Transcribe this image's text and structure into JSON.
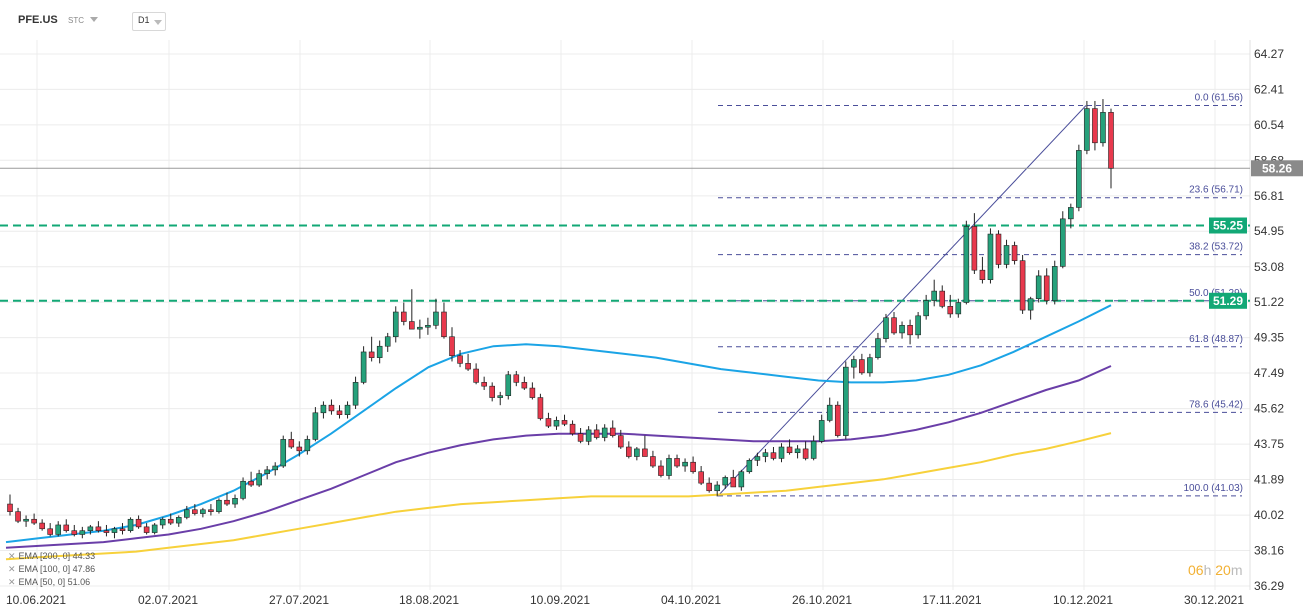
{
  "header": {
    "symbol": "PFE.US",
    "exchange": "STC",
    "timeframe": "D1"
  },
  "timer": {
    "hours": "06",
    "h_unit": "h",
    "minutes": "20",
    "m_unit": "m"
  },
  "legend": [
    {
      "label": "EMA [200, 0]",
      "value": "44.33"
    },
    {
      "label": "EMA [100, 0]",
      "value": "47.86"
    },
    {
      "label": "EMA [50, 0]",
      "value": "51.06"
    }
  ],
  "colors": {
    "up": "#26a17b",
    "down": "#e8394d",
    "ema200": "#f7d13b",
    "ema100": "#6a3ea8",
    "ema50": "#1ba4e6",
    "fib": "#4a4e9a",
    "level": "#12a876"
  },
  "chart_data": {
    "type": "candlestick",
    "y_ticks": [
      64.27,
      62.41,
      60.54,
      58.68,
      56.81,
      54.95,
      53.08,
      51.22,
      49.35,
      47.49,
      45.62,
      43.75,
      41.89,
      40.02,
      38.16,
      36.29
    ],
    "ylim": [
      36.29,
      64.27
    ],
    "x_labels": [
      "10.06.2021",
      "02.07.2021",
      "27.07.2021",
      "18.08.2021",
      "10.09.2021",
      "04.10.2021",
      "26.10.2021",
      "17.11.2021",
      "10.12.2021",
      "30.12.2021"
    ],
    "current_price": "58.26",
    "horizontal_levels": [
      {
        "price": 55.25,
        "label": "55.25"
      },
      {
        "price": 51.29,
        "label": "51.29"
      }
    ],
    "fibonacci": {
      "low": 41.03,
      "high": 61.56,
      "levels": [
        {
          "label": "0.0 (61.56)",
          "price": 61.56
        },
        {
          "label": "23.6 (56.71)",
          "price": 56.71
        },
        {
          "label": "38.2 (53.72)",
          "price": 53.72
        },
        {
          "label": "50.0 (51.29)",
          "price": 51.29
        },
        {
          "label": "61.8 (48.87)",
          "price": 48.87
        },
        {
          "label": "78.6 (45.42)",
          "price": 45.42
        },
        {
          "label": "100.0 (41.03)",
          "price": 41.03
        }
      ]
    },
    "ohlc": [
      [
        40.6,
        41.1,
        40.0,
        40.2
      ],
      [
        40.2,
        40.4,
        39.6,
        39.7
      ],
      [
        39.7,
        40.0,
        39.4,
        39.8
      ],
      [
        39.8,
        40.1,
        39.5,
        39.6
      ],
      [
        39.6,
        39.8,
        39.2,
        39.3
      ],
      [
        39.3,
        39.6,
        38.9,
        39.0
      ],
      [
        39.0,
        39.7,
        38.9,
        39.5
      ],
      [
        39.5,
        39.8,
        39.1,
        39.2
      ],
      [
        39.2,
        39.5,
        38.9,
        39.0
      ],
      [
        39.0,
        39.4,
        38.8,
        39.2
      ],
      [
        39.2,
        39.5,
        39.0,
        39.4
      ],
      [
        39.4,
        39.7,
        39.1,
        39.2
      ],
      [
        39.2,
        39.5,
        38.9,
        39.1
      ],
      [
        39.1,
        39.4,
        38.8,
        39.3
      ],
      [
        39.3,
        39.6,
        39.0,
        39.2
      ],
      [
        39.2,
        39.9,
        39.1,
        39.8
      ],
      [
        39.8,
        40.0,
        39.3,
        39.4
      ],
      [
        39.4,
        39.6,
        39.0,
        39.1
      ],
      [
        39.1,
        39.6,
        39.0,
        39.5
      ],
      [
        39.5,
        39.9,
        39.3,
        39.8
      ],
      [
        39.8,
        40.1,
        39.5,
        39.6
      ],
      [
        39.6,
        40.0,
        39.4,
        39.9
      ],
      [
        39.9,
        40.5,
        39.8,
        40.3
      ],
      [
        40.3,
        40.6,
        40.0,
        40.1
      ],
      [
        40.1,
        40.4,
        39.9,
        40.3
      ],
      [
        40.3,
        40.6,
        40.0,
        40.2
      ],
      [
        40.2,
        40.9,
        40.1,
        40.8
      ],
      [
        40.8,
        41.2,
        40.5,
        40.6
      ],
      [
        40.6,
        41.1,
        40.4,
        40.9
      ],
      [
        40.9,
        42.0,
        40.8,
        41.8
      ],
      [
        41.8,
        42.3,
        41.5,
        41.6
      ],
      [
        41.6,
        42.4,
        41.5,
        42.2
      ],
      [
        42.2,
        42.6,
        41.9,
        42.4
      ],
      [
        42.4,
        42.8,
        42.1,
        42.6
      ],
      [
        42.6,
        44.2,
        42.5,
        44.0
      ],
      [
        44.0,
        44.4,
        43.5,
        43.6
      ],
      [
        43.6,
        43.9,
        43.1,
        43.4
      ],
      [
        43.4,
        44.2,
        43.2,
        44.0
      ],
      [
        44.0,
        45.7,
        43.9,
        45.4
      ],
      [
        45.4,
        46.0,
        45.1,
        45.8
      ],
      [
        45.8,
        46.1,
        45.3,
        45.5
      ],
      [
        45.5,
        45.8,
        45.1,
        45.3
      ],
      [
        45.3,
        46.0,
        45.1,
        45.8
      ],
      [
        45.8,
        47.3,
        45.6,
        47.0
      ],
      [
        47.0,
        48.9,
        46.9,
        48.6
      ],
      [
        48.6,
        49.4,
        48.1,
        48.3
      ],
      [
        48.3,
        49.2,
        48.0,
        48.9
      ],
      [
        48.9,
        49.6,
        48.6,
        49.4
      ],
      [
        49.4,
        51.0,
        49.1,
        50.7
      ],
      [
        50.7,
        51.2,
        50.0,
        50.2
      ],
      [
        50.2,
        51.9,
        49.9,
        49.8
      ],
      [
        49.8,
        50.3,
        49.3,
        49.9
      ],
      [
        49.9,
        50.4,
        49.5,
        50.0
      ],
      [
        50.0,
        51.4,
        49.8,
        50.7
      ],
      [
        50.7,
        51.2,
        49.3,
        49.4
      ],
      [
        49.4,
        49.9,
        48.1,
        48.4
      ],
      [
        48.4,
        48.7,
        47.8,
        48.0
      ],
      [
        48.0,
        48.5,
        47.6,
        47.7
      ],
      [
        47.7,
        48.0,
        46.9,
        47.0
      ],
      [
        47.0,
        47.3,
        46.6,
        46.8
      ],
      [
        46.8,
        47.0,
        46.0,
        46.2
      ],
      [
        46.2,
        46.5,
        45.8,
        46.3
      ],
      [
        46.3,
        47.6,
        46.1,
        47.4
      ],
      [
        47.4,
        47.6,
        46.8,
        47.0
      ],
      [
        47.0,
        47.3,
        46.6,
        46.7
      ],
      [
        46.7,
        47.0,
        46.1,
        46.2
      ],
      [
        46.2,
        46.4,
        45.0,
        45.1
      ],
      [
        45.1,
        45.4,
        44.6,
        44.7
      ],
      [
        44.7,
        45.2,
        44.5,
        45.0
      ],
      [
        45.0,
        45.3,
        44.7,
        44.8
      ],
      [
        44.8,
        45.0,
        44.2,
        44.3
      ],
      [
        44.3,
        44.6,
        43.8,
        43.9
      ],
      [
        43.9,
        44.7,
        43.7,
        44.5
      ],
      [
        44.5,
        44.8,
        44.0,
        44.1
      ],
      [
        44.1,
        44.8,
        43.9,
        44.6
      ],
      [
        44.6,
        45.0,
        44.1,
        44.2
      ],
      [
        44.2,
        44.5,
        43.5,
        43.6
      ],
      [
        43.6,
        43.9,
        43.0,
        43.1
      ],
      [
        43.1,
        43.6,
        42.9,
        43.5
      ],
      [
        43.5,
        44.2,
        43.3,
        43.1
      ],
      [
        43.1,
        43.4,
        42.5,
        42.6
      ],
      [
        42.6,
        42.9,
        42.0,
        42.1
      ],
      [
        42.1,
        43.2,
        41.9,
        43.0
      ],
      [
        43.0,
        43.2,
        42.5,
        42.6
      ],
      [
        42.6,
        43.0,
        42.3,
        42.8
      ],
      [
        42.8,
        43.1,
        42.2,
        42.3
      ],
      [
        42.3,
        42.6,
        41.6,
        41.7
      ],
      [
        41.7,
        42.0,
        41.2,
        41.3
      ],
      [
        41.3,
        41.8,
        41.0,
        41.6
      ],
      [
        41.6,
        42.1,
        41.4,
        42.0
      ],
      [
        42.0,
        42.4,
        41.6,
        41.5
      ],
      [
        41.5,
        42.4,
        41.3,
        42.3
      ],
      [
        42.3,
        43.0,
        42.2,
        42.9
      ],
      [
        42.9,
        43.3,
        42.6,
        43.1
      ],
      [
        43.1,
        43.5,
        42.8,
        43.3
      ],
      [
        43.3,
        43.6,
        42.9,
        43.0
      ],
      [
        43.0,
        43.8,
        42.8,
        43.6
      ],
      [
        43.6,
        44.0,
        43.2,
        43.3
      ],
      [
        43.3,
        43.7,
        43.0,
        43.5
      ],
      [
        43.5,
        43.9,
        42.9,
        43.0
      ],
      [
        43.0,
        44.2,
        42.9,
        43.9
      ],
      [
        43.9,
        45.3,
        43.8,
        45.0
      ],
      [
        45.0,
        46.2,
        44.9,
        45.8
      ],
      [
        45.8,
        46.0,
        44.1,
        44.2
      ],
      [
        44.2,
        48.1,
        44.0,
        47.8
      ],
      [
        47.8,
        48.4,
        47.2,
        48.2
      ],
      [
        48.2,
        48.5,
        47.4,
        47.5
      ],
      [
        47.5,
        48.5,
        47.3,
        48.3
      ],
      [
        48.3,
        49.6,
        48.2,
        49.3
      ],
      [
        49.3,
        50.6,
        49.1,
        50.4
      ],
      [
        50.4,
        50.7,
        49.5,
        49.6
      ],
      [
        49.6,
        50.2,
        49.3,
        50.0
      ],
      [
        50.0,
        50.3,
        49.0,
        49.5
      ],
      [
        49.5,
        50.7,
        49.3,
        50.5
      ],
      [
        50.5,
        51.6,
        50.3,
        51.3
      ],
      [
        51.3,
        52.4,
        51.0,
        51.8
      ],
      [
        51.8,
        52.1,
        50.9,
        51.0
      ],
      [
        51.0,
        51.6,
        50.4,
        50.6
      ],
      [
        50.6,
        51.4,
        50.4,
        51.2
      ],
      [
        51.2,
        55.5,
        51.1,
        55.2
      ],
      [
        55.2,
        55.9,
        52.7,
        52.9
      ],
      [
        52.9,
        53.6,
        52.2,
        52.4
      ],
      [
        52.4,
        55.1,
        52.2,
        54.8
      ],
      [
        54.8,
        55.0,
        53.0,
        53.2
      ],
      [
        53.2,
        54.5,
        53.0,
        54.2
      ],
      [
        54.2,
        54.4,
        53.2,
        53.4
      ],
      [
        53.4,
        53.7,
        50.6,
        50.8
      ],
      [
        50.8,
        51.5,
        50.3,
        51.4
      ],
      [
        51.4,
        52.9,
        51.2,
        52.6
      ],
      [
        52.6,
        53.0,
        51.1,
        51.3
      ],
      [
        51.3,
        53.4,
        51.1,
        53.1
      ],
      [
        53.1,
        56.0,
        53.0,
        55.6
      ],
      [
        55.6,
        56.4,
        55.1,
        56.2
      ],
      [
        56.2,
        59.5,
        56.0,
        59.2
      ],
      [
        59.2,
        61.8,
        59.0,
        61.4
      ],
      [
        61.4,
        61.8,
        59.2,
        59.6
      ],
      [
        59.6,
        61.9,
        59.4,
        61.2
      ],
      [
        61.2,
        61.4,
        57.2,
        58.26
      ]
    ],
    "series": [
      {
        "name": "EMA [50, 0]",
        "values": [
          38.6,
          38.8,
          39.0,
          39.2,
          39.5,
          40.0,
          40.6,
          41.3,
          42.2,
          43.2,
          44.3,
          45.5,
          46.7,
          47.8,
          48.5,
          48.9,
          49.0,
          48.9,
          48.7,
          48.5,
          48.3,
          48.0,
          47.7,
          47.5,
          47.3,
          47.1,
          47.0,
          47.0,
          47.1,
          47.4,
          47.9,
          48.6,
          49.4,
          50.2,
          51.06
        ]
      },
      {
        "name": "EMA [100, 0]",
        "values": [
          38.3,
          38.4,
          38.5,
          38.6,
          38.8,
          39.0,
          39.3,
          39.7,
          40.2,
          40.8,
          41.4,
          42.1,
          42.8,
          43.3,
          43.7,
          44.0,
          44.2,
          44.3,
          44.3,
          44.3,
          44.2,
          44.1,
          44.0,
          43.9,
          43.9,
          43.9,
          44.0,
          44.2,
          44.5,
          44.9,
          45.4,
          46.0,
          46.6,
          47.1,
          47.86
        ]
      },
      {
        "name": "EMA [200, 0]",
        "values": [
          37.7,
          37.8,
          37.9,
          38.0,
          38.1,
          38.3,
          38.5,
          38.7,
          39.0,
          39.3,
          39.6,
          39.9,
          40.2,
          40.4,
          40.6,
          40.7,
          40.8,
          40.9,
          41.0,
          41.0,
          41.0,
          41.0,
          41.1,
          41.2,
          41.3,
          41.5,
          41.7,
          41.9,
          42.2,
          42.5,
          42.8,
          43.2,
          43.5,
          43.9,
          44.33
        ]
      }
    ]
  }
}
